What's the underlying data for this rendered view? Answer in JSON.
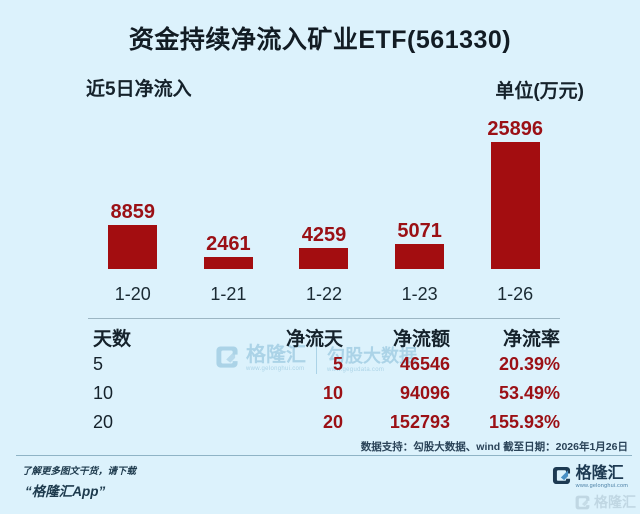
{
  "title": "资金持续净流入矿业ETF(561330)",
  "chart_header": {
    "left_label": "近5日净流入",
    "unit_label": "单位(万元)"
  },
  "chart_data": {
    "type": "bar",
    "title": "近5日净流入",
    "unit": "万元",
    "categories": [
      "1-20",
      "1-21",
      "1-22",
      "1-23",
      "1-26"
    ],
    "values": [
      8859,
      2461,
      4259,
      5071,
      25896
    ],
    "value_labels": [
      "8859",
      "2461",
      "4259",
      "5071",
      "25896"
    ],
    "ylim": [
      0,
      25896
    ],
    "bar_color": "#a30d10",
    "grid": false,
    "legend": false
  },
  "table": {
    "headers": [
      "天数",
      "净流天",
      "净流额",
      "净流率"
    ],
    "rows": [
      [
        "5",
        "5",
        "46546",
        "20.39%"
      ],
      [
        "10",
        "10",
        "94096",
        "53.49%"
      ],
      [
        "20",
        "20",
        "152793",
        "155.93%"
      ]
    ]
  },
  "watermark": {
    "brand": "格隆汇",
    "brand_url": "www.gelonghui.com",
    "partner": "勾股大数据",
    "partner_url": "www.gegudata.com"
  },
  "footer": {
    "source_note": "数据支持：勾股大数据、wind  截至日期：2026年1月26日",
    "promo_line1": "了解更多图文干货，请下载",
    "promo_line2": "“格隆汇App”",
    "brand": "格隆汇",
    "brand_url": "www.gelonghui.com"
  },
  "colors": {
    "background": "#dcf2fc",
    "bar": "#a30d10",
    "accent_red": "#9b1015",
    "dark_text": "#15222b",
    "divider": "#9cb6c3",
    "watermark_blue": "#a9d2e6",
    "logo_navy": "#1d3a52",
    "logo_arrow_blue": "#4a90c4"
  }
}
